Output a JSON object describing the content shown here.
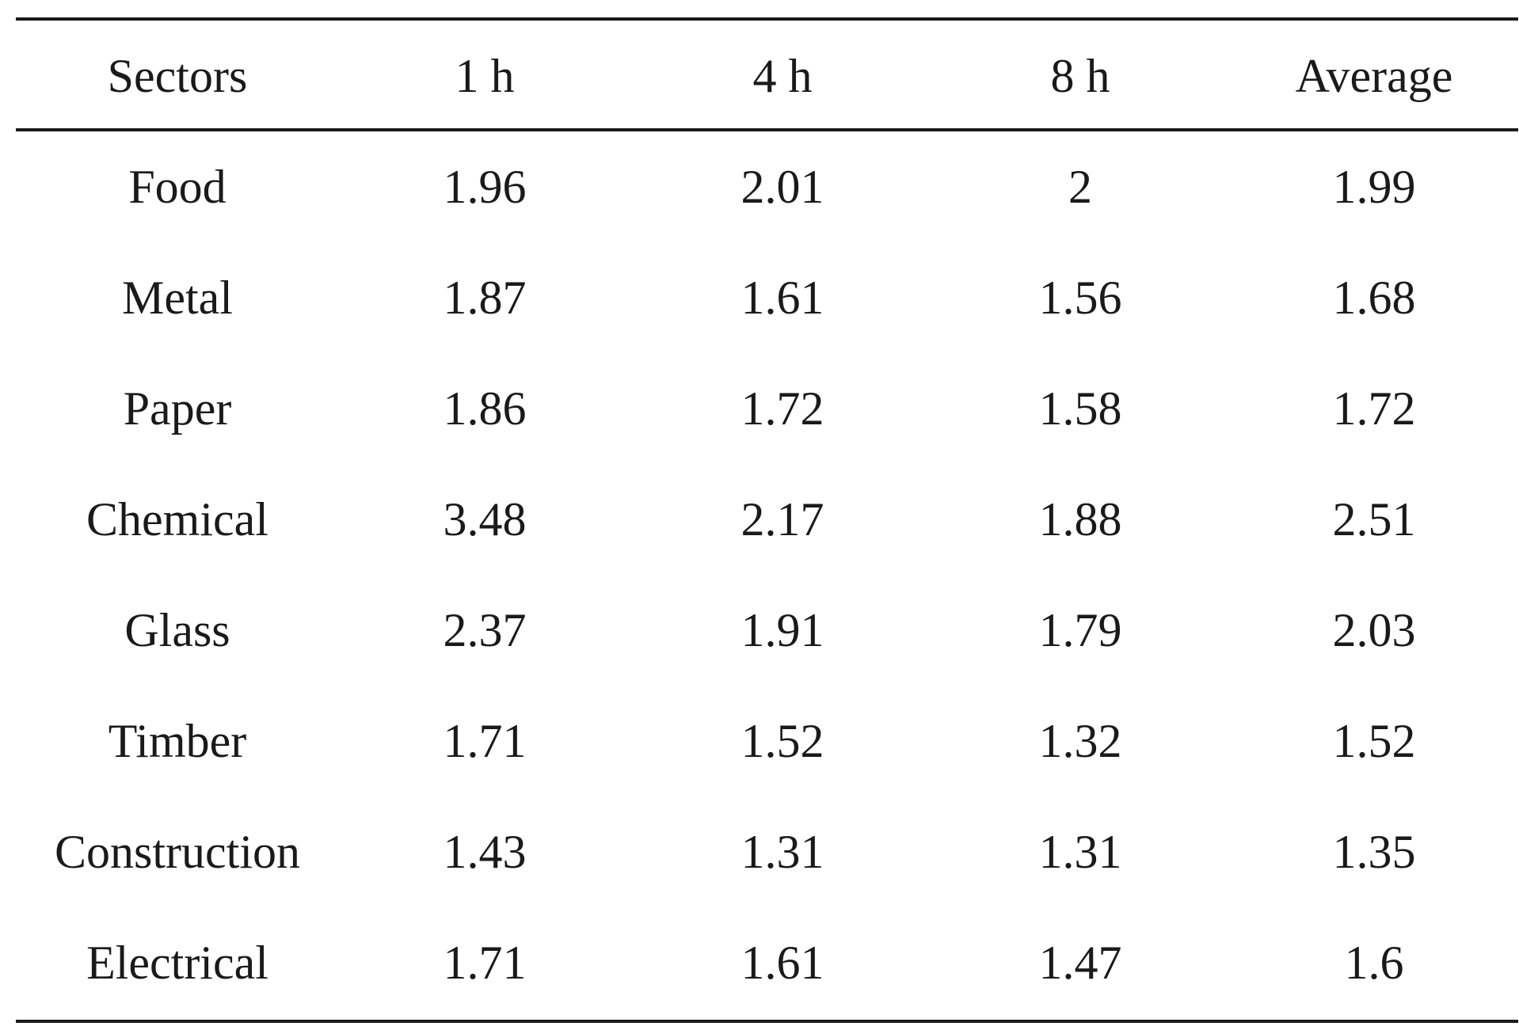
{
  "table": {
    "headers": [
      "Sectors",
      "1 h",
      "4 h",
      "8 h",
      "Average"
    ],
    "rows": [
      [
        "Food",
        "1.96",
        "2.01",
        "2",
        "1.99"
      ],
      [
        "Metal",
        "1.87",
        "1.61",
        "1.56",
        "1.68"
      ],
      [
        "Paper",
        "1.86",
        "1.72",
        "1.58",
        "1.72"
      ],
      [
        "Chemical",
        "3.48",
        "2.17",
        "1.88",
        "2.51"
      ],
      [
        "Glass",
        "2.37",
        "1.91",
        "1.79",
        "2.03"
      ],
      [
        "Timber",
        "1.71",
        "1.52",
        "1.32",
        "1.52"
      ],
      [
        "Construction",
        "1.43",
        "1.31",
        "1.31",
        "1.35"
      ],
      [
        "Electrical",
        "1.71",
        "1.61",
        "1.47",
        "1.6"
      ]
    ]
  }
}
